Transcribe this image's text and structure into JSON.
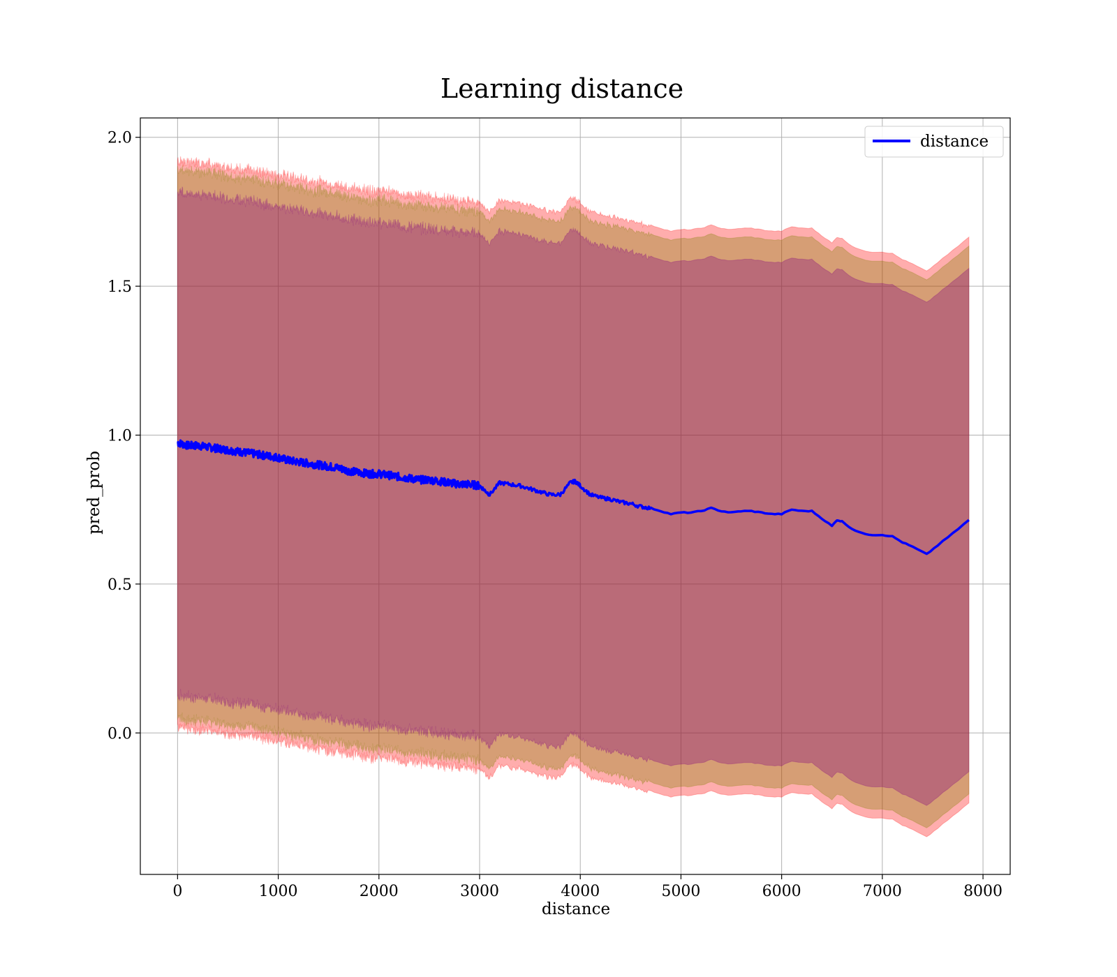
{
  "chart_data": {
    "type": "line",
    "title": "Learning distance",
    "xlabel": "distance",
    "ylabel": "pred_prob",
    "xlim": [
      -370,
      8270
    ],
    "ylim": [
      -0.475,
      2.065
    ],
    "x_ticks": [
      0,
      1000,
      2000,
      3000,
      4000,
      5000,
      6000,
      7000,
      8000
    ],
    "x_tick_labels": [
      "0",
      "1000",
      "2000",
      "3000",
      "4000",
      "5000",
      "6000",
      "7000",
      "8000"
    ],
    "y_ticks": [
      0.0,
      0.5,
      1.0,
      1.5,
      2.0
    ],
    "y_tick_labels": [
      "0.0",
      "0.5",
      "1.0",
      "1.5",
      "2.0"
    ],
    "grid": true,
    "legend": {
      "position": "top-right",
      "entries": [
        "distance"
      ]
    },
    "series": [
      {
        "name": "distance",
        "color": "#0000ff",
        "x": [
          0,
          100,
          200,
          300,
          400,
          500,
          600,
          700,
          800,
          900,
          1000,
          1100,
          1200,
          1300,
          1400,
          1500,
          1600,
          1700,
          1800,
          1900,
          2000,
          2100,
          2200,
          2300,
          2400,
          2500,
          2600,
          2700,
          2800,
          2900,
          3000,
          3050,
          3100,
          3200,
          3300,
          3400,
          3500,
          3600,
          3700,
          3800,
          3900,
          3950,
          4000,
          4100,
          4200,
          4300,
          4400,
          4500,
          4600,
          4700,
          4800,
          4900,
          5000,
          5100,
          5200,
          5300,
          5400,
          5500,
          5600,
          5700,
          5800,
          5900,
          6000,
          6100,
          6200,
          6300,
          6400,
          6500,
          6550,
          6600,
          6700,
          6800,
          6900,
          7000,
          7100,
          7200,
          7300,
          7440,
          7550,
          7700,
          7860
        ],
        "y": [
          0.975,
          0.965,
          0.965,
          0.96,
          0.955,
          0.95,
          0.945,
          0.94,
          0.935,
          0.93,
          0.925,
          0.915,
          0.91,
          0.905,
          0.9,
          0.895,
          0.89,
          0.88,
          0.875,
          0.87,
          0.87,
          0.865,
          0.86,
          0.855,
          0.85,
          0.85,
          0.845,
          0.84,
          0.835,
          0.835,
          0.83,
          0.815,
          0.8,
          0.84,
          0.835,
          0.83,
          0.82,
          0.81,
          0.8,
          0.8,
          0.84,
          0.845,
          0.83,
          0.8,
          0.79,
          0.785,
          0.775,
          0.77,
          0.76,
          0.755,
          0.745,
          0.735,
          0.74,
          0.74,
          0.745,
          0.755,
          0.745,
          0.74,
          0.745,
          0.745,
          0.74,
          0.735,
          0.735,
          0.75,
          0.745,
          0.745,
          0.72,
          0.695,
          0.715,
          0.71,
          0.685,
          0.67,
          0.665,
          0.665,
          0.66,
          0.64,
          0.625,
          0.6,
          0.63,
          0.67,
          0.715
        ]
      }
    ],
    "bands": [
      {
        "name": "",
        "color": "#ff0000",
        "opacity": 0.32,
        "half_width": 0.95
      },
      {
        "name": "",
        "color": "#808000",
        "opacity": 0.32,
        "half_width": 0.92
      },
      {
        "name": "",
        "color": "#800080",
        "opacity": 0.32,
        "half_width": 0.845
      }
    ]
  }
}
